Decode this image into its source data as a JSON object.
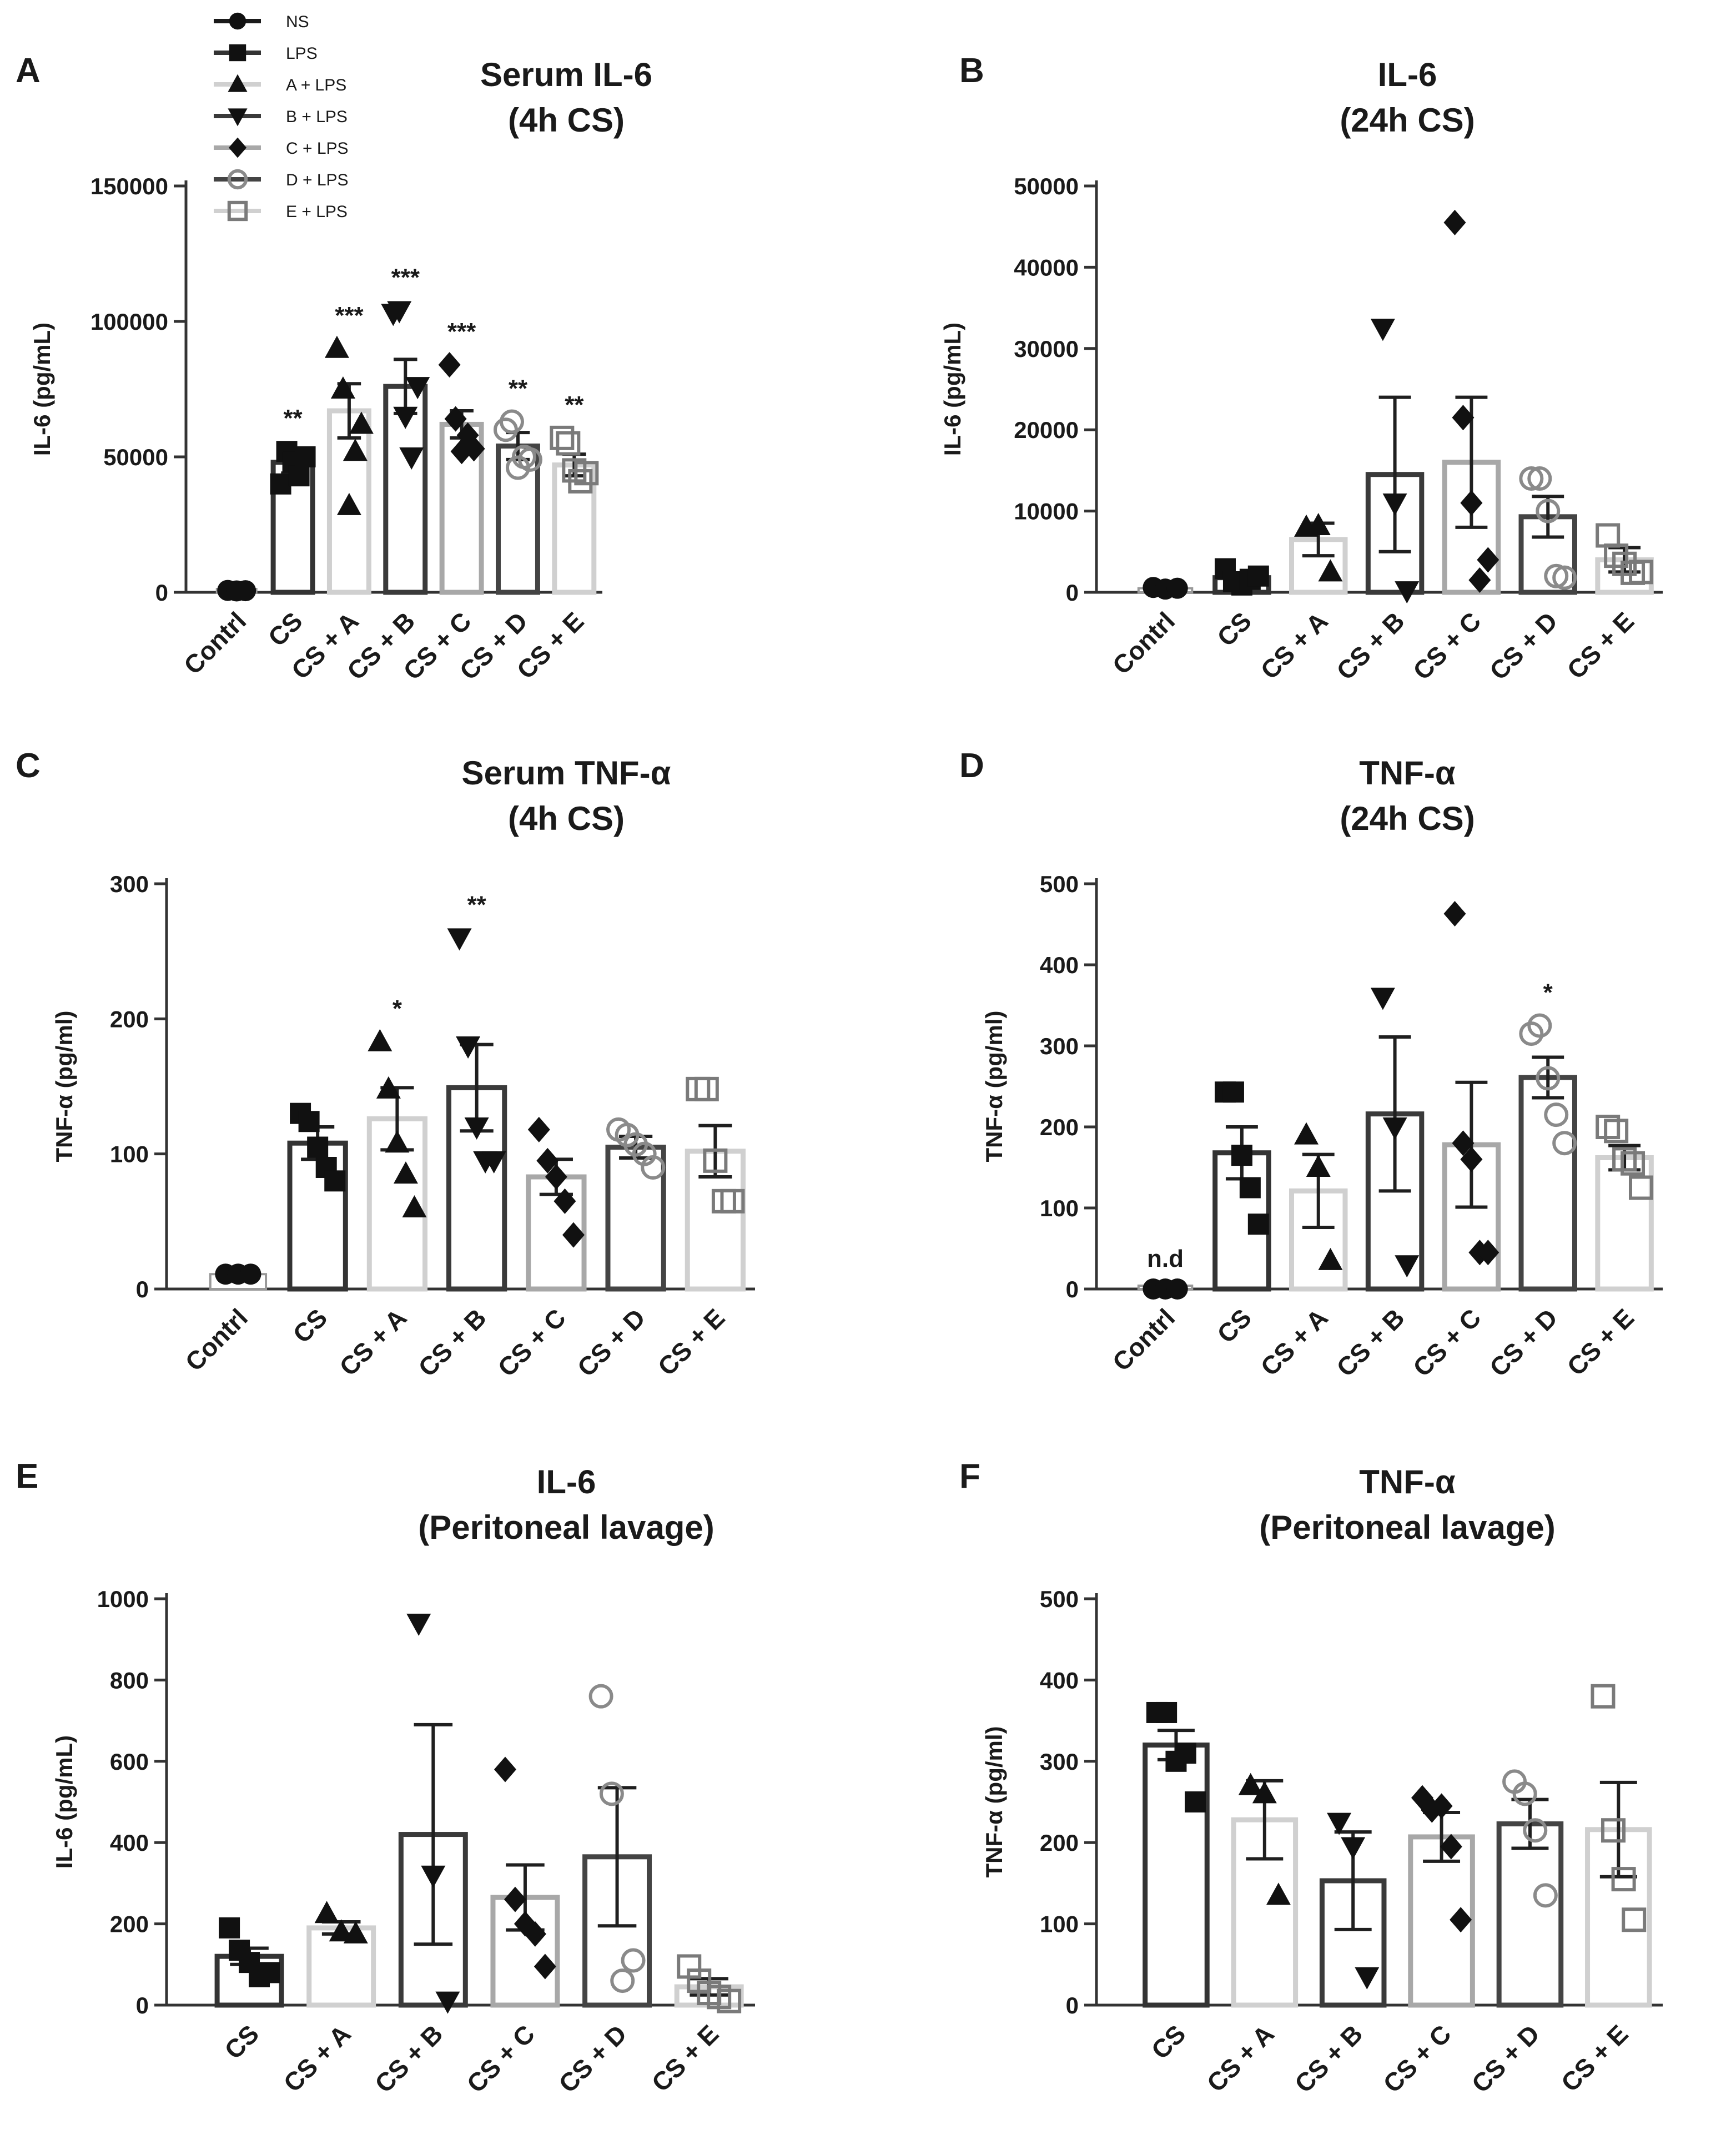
{
  "styles": {
    "NS": {
      "fill": "#ffffff",
      "stroke": "#1a1a1a",
      "marker": "circle",
      "open": false,
      "markerColor": "#111111"
    },
    "LPS": {
      "fill": "#ffffff",
      "stroke": "#333333",
      "marker": "square",
      "open": false,
      "markerColor": "#111111"
    },
    "A": {
      "fill": "#ffffff",
      "stroke": "#d0d0d0",
      "marker": "triangle-up",
      "open": false,
      "markerColor": "#111111"
    },
    "B": {
      "fill": "#ffffff",
      "stroke": "#3a3a3a",
      "marker": "triangle-down",
      "open": false,
      "markerColor": "#111111"
    },
    "C": {
      "fill": "#ffffff",
      "stroke": "#a8a8a8",
      "marker": "diamond",
      "open": false,
      "markerColor": "#111111"
    },
    "D": {
      "fill": "#ffffff",
      "stroke": "#444444",
      "marker": "circle",
      "open": true,
      "markerColor": "#8a8a8a"
    },
    "E": {
      "fill": "#ffffff",
      "stroke": "#d0d0d0",
      "marker": "square",
      "open": true,
      "markerColor": "#7a7a7a"
    }
  },
  "legend": {
    "entries": [
      {
        "label": "NS",
        "style": "NS"
      },
      {
        "label": "LPS",
        "style": "LPS"
      },
      {
        "label": "A + LPS",
        "style": "A"
      },
      {
        "label": "B + LPS",
        "style": "B"
      },
      {
        "label": "C + LPS",
        "style": "C"
      },
      {
        "label": "D + LPS",
        "style": "D"
      },
      {
        "label": "E + LPS",
        "style": "E"
      }
    ]
  },
  "chart_data": [
    {
      "panel": "A",
      "type": "bar",
      "title": [
        "Serum IL-6",
        "(4h CS)"
      ],
      "ylabel": "IL-6 (pg/mL)",
      "ylim": [
        0,
        150000
      ],
      "yticks": [
        0,
        50000,
        100000,
        150000
      ],
      "ytick_labels": [
        "0",
        "50000",
        "100000",
        "150000"
      ],
      "categories": [
        "Contrl",
        "CS",
        "CS + A",
        "CS + B",
        "CS + C",
        "CS + D",
        "CS + E"
      ],
      "styles": [
        "NS",
        "LPS",
        "A",
        "B",
        "C",
        "D",
        "E"
      ],
      "means": [
        500,
        48000,
        67000,
        76000,
        62000,
        54000,
        47000
      ],
      "sem": [
        100,
        4000,
        10000,
        10000,
        5000,
        5000,
        4000
      ],
      "points": [
        [
          700,
          500,
          600
        ],
        [
          40000,
          52000,
          48000,
          43000,
          50000
        ],
        [
          90000,
          75000,
          32000,
          52000,
          62000
        ],
        [
          103000,
          104000,
          65000,
          50000,
          76000
        ],
        [
          84000,
          64000,
          52000,
          58000,
          53000
        ],
        [
          60000,
          63000,
          46000,
          50000,
          49000
        ],
        [
          57000,
          55000,
          45000,
          41000,
          44000
        ]
      ],
      "annotations": [
        "",
        "**",
        "***",
        "***",
        "***",
        "**",
        "**"
      ]
    },
    {
      "panel": "B",
      "type": "bar",
      "title": [
        "IL-6",
        "(24h CS)"
      ],
      "ylabel": "IL-6 (pg/mL)",
      "ylim": [
        0,
        50000
      ],
      "yticks": [
        0,
        10000,
        20000,
        30000,
        40000,
        50000
      ],
      "ytick_labels": [
        "0",
        "10000",
        "20000",
        "30000",
        "40000",
        "50000"
      ],
      "categories": [
        "Contrl",
        "CS",
        "CS + A",
        "CS + B",
        "CS + C",
        "CS + D",
        "CS + E"
      ],
      "styles": [
        "NS",
        "LPS",
        "A",
        "B",
        "C",
        "D",
        "E"
      ],
      "means": [
        500,
        1800,
        6500,
        14500,
        16000,
        9300,
        4000
      ],
      "sem": [
        100,
        500,
        2000,
        9500,
        8000,
        2500,
        1500
      ],
      "points": [
        [
          600,
          400,
          500
        ],
        [
          2900,
          1300,
          900,
          1600,
          2000
        ],
        [
          8000,
          8200,
          2500
        ],
        [
          32500,
          11000,
          200
        ],
        [
          45500,
          21500,
          11000,
          1500,
          4000
        ],
        [
          14000,
          14000,
          10000,
          2000,
          1800
        ],
        [
          7000,
          4500,
          3500,
          2400,
          2500
        ]
      ],
      "annotations": [
        "",
        "",
        "",
        "",
        "",
        "",
        ""
      ]
    },
    {
      "panel": "C",
      "type": "bar",
      "title": [
        "Serum TNF-α",
        "(4h CS)"
      ],
      "ylabel": "TNF-α (pg/ml)",
      "ylim": [
        0,
        300
      ],
      "yticks": [
        0,
        100,
        200,
        300
      ],
      "ytick_labels": [
        "0",
        "100",
        "200",
        "300"
      ],
      "categories": [
        "Contrl",
        "CS",
        "CS + A",
        "CS + B",
        "CS + C",
        "CS + D",
        "CS + E"
      ],
      "styles": [
        "NS",
        "LPS",
        "A",
        "B",
        "C",
        "D",
        "E"
      ],
      "means": [
        11,
        108,
        126,
        149,
        83,
        105,
        102
      ],
      "sem": [
        1,
        12,
        23,
        32,
        13,
        8,
        19
      ],
      "points": [
        [
          11,
          11,
          11
        ],
        [
          130,
          124,
          105,
          90,
          80
        ],
        [
          183,
          148,
          108,
          85,
          60
        ],
        [
          260,
          180,
          120,
          95,
          95
        ],
        [
          118,
          95,
          83,
          65,
          40
        ],
        [
          118,
          114,
          107,
          100,
          90
        ],
        [
          148,
          148,
          95,
          65,
          65
        ]
      ],
      "annotations": [
        "",
        "",
        "*",
        "**",
        "",
        "",
        ""
      ]
    },
    {
      "panel": "D",
      "type": "bar",
      "title": [
        "TNF-α",
        "(24h CS)"
      ],
      "ylabel": "TNF-α (pg/ml)",
      "ylim": [
        0,
        500
      ],
      "yticks": [
        0,
        100,
        200,
        300,
        400,
        500
      ],
      "ytick_labels": [
        "0",
        "100",
        "200",
        "300",
        "400",
        "500"
      ],
      "categories": [
        "Contrl",
        "CS",
        "CS + A",
        "CS + B",
        "CS + C",
        "CS + D",
        "CS + E"
      ],
      "styles": [
        "NS",
        "LPS",
        "A",
        "B",
        "C",
        "D",
        "E"
      ],
      "means": [
        0,
        168,
        121,
        216,
        178,
        261,
        162
      ],
      "sem": [
        0,
        32,
        45,
        95,
        77,
        25,
        15
      ],
      "points": [
        [
          0,
          0,
          0
        ],
        [
          243,
          243,
          165,
          125,
          80
        ],
        [
          190,
          150,
          35
        ],
        [
          360,
          200,
          30
        ],
        [
          463,
          180,
          160,
          45,
          45
        ],
        [
          315,
          325,
          260,
          215,
          180
        ],
        [
          200,
          195,
          160,
          155,
          125
        ]
      ],
      "annotations": [
        "n.d",
        "",
        "",
        "",
        "",
        "*",
        ""
      ]
    },
    {
      "panel": "E",
      "type": "bar",
      "title": [
        "IL-6",
        "(Peritoneal lavage)"
      ],
      "ylabel": "IL-6 (pg/mL)",
      "ylim": [
        0,
        1000
      ],
      "yticks": [
        0,
        200,
        400,
        600,
        800,
        1000
      ],
      "ytick_labels": [
        "0",
        "200",
        "400",
        "600",
        "800",
        "1000"
      ],
      "categories": [
        "CS",
        "CS + A",
        "CS + B",
        "CS + C",
        "CS + D",
        "CS + E"
      ],
      "styles": [
        "LPS",
        "A",
        "B",
        "C",
        "D",
        "E"
      ],
      "means": [
        120,
        190,
        420,
        265,
        365,
        45
      ],
      "sem": [
        20,
        15,
        270,
        80,
        170,
        20
      ],
      "points": [
        [
          190,
          135,
          105,
          70,
          80
        ],
        [
          225,
          180,
          175
        ],
        [
          940,
          320,
          10
        ],
        [
          580,
          260,
          200,
          175,
          95
        ],
        [
          760,
          520,
          60,
          110
        ],
        [
          95,
          60,
          30,
          20,
          10
        ]
      ],
      "annotations": [
        "",
        "",
        "",
        "",
        "",
        ""
      ]
    },
    {
      "panel": "F",
      "type": "bar",
      "title": [
        "TNF-α",
        "(Peritoneal lavage)"
      ],
      "ylabel": "TNF-α (pg/ml)",
      "ylim": [
        0,
        500
      ],
      "yticks": [
        0,
        100,
        200,
        300,
        400,
        500
      ],
      "ytick_labels": [
        "0",
        "100",
        "200",
        "300",
        "400",
        "500"
      ],
      "categories": [
        "CS",
        "CS + A",
        "CS + B",
        "CS + C",
        "CS + D",
        "CS + E"
      ],
      "styles": [
        "LPS",
        "A",
        "B",
        "C",
        "D",
        "E"
      ],
      "means": [
        320,
        228,
        153,
        207,
        223,
        216
      ],
      "sem": [
        18,
        48,
        60,
        30,
        30,
        58
      ],
      "points": [
        [
          360,
          360,
          300,
          310,
          250
        ],
        [
          270,
          260,
          135
        ],
        [
          225,
          195,
          35
        ],
        [
          255,
          240,
          245,
          195,
          105
        ],
        [
          275,
          260,
          215,
          135
        ],
        [
          380,
          215,
          155,
          105
        ]
      ],
      "annotations": [
        "",
        "",
        "",
        "",
        "",
        ""
      ]
    }
  ]
}
